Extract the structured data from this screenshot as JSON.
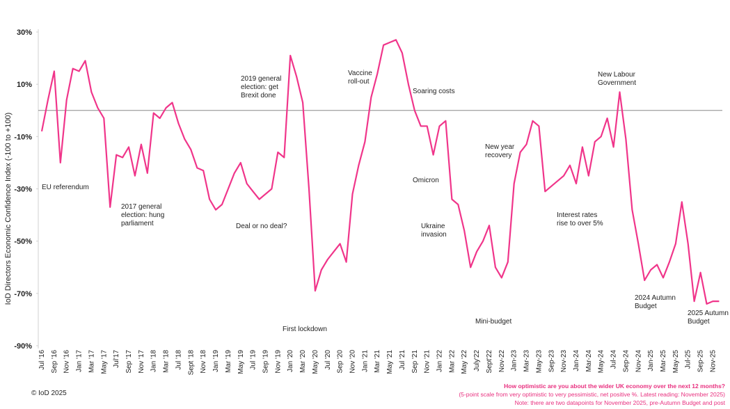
{
  "chart_data": {
    "type": "line",
    "y_label": "IoD Directors Economic Confidence Index (-100 to +100)",
    "copyright": "© IoD 2025",
    "question": "How optimistic are you about the wider UK economy over the next 12 months?",
    "scale_note": "(5-point scale from very optimistic to very pessimistic, net positive %. Latest reading: November 2025)",
    "note": "Note: there are two datapoints for November 2025, pre-Autumn Budget and post",
    "ylim": [
      -90,
      30
    ],
    "yticks": [
      {
        "value": 30,
        "label": "30%"
      },
      {
        "value": 10,
        "label": "10%"
      },
      {
        "value": -10,
        "label": "-10%"
      },
      {
        "value": -30,
        "label": "-30%"
      },
      {
        "value": -50,
        "label": "-50%"
      },
      {
        "value": -70,
        "label": "-70%"
      },
      {
        "value": -90,
        "label": "-90%"
      }
    ],
    "categories": [
      "Jul '16",
      null,
      "Sep '16",
      null,
      "Nov '16",
      null,
      "Jan '17",
      null,
      "Mar '17",
      null,
      "May '17",
      null,
      "Jul'17",
      null,
      "Sep '17",
      null,
      "Nov '17",
      null,
      "Jan '18",
      null,
      "Mar '18",
      null,
      "Jul '18",
      null,
      "Sept '18",
      null,
      "Nov '18",
      null,
      "Jan '19",
      null,
      "Mar '19",
      null,
      "May '19",
      null,
      "Jul '19",
      null,
      "Sep '19",
      null,
      "Nov '19",
      null,
      "Jan '20",
      null,
      "Mar '20",
      null,
      "May '20",
      null,
      "Jul '20",
      null,
      "Sep '20",
      null,
      "Nov '20",
      null,
      "Jan '21",
      null,
      "Mar '21",
      null,
      "May '21",
      null,
      "Jul '21",
      null,
      "Sep '21",
      null,
      "Nov '21",
      null,
      "Jan '22",
      null,
      "Mar '22",
      null,
      "May '22",
      null,
      "July'22",
      null,
      "Sept'22",
      null,
      "Nov-22",
      null,
      "Jan-23",
      null,
      "Mar-23",
      null,
      "May-23",
      null,
      "Sep-23",
      null,
      "Nov-23",
      null,
      "Jan-24",
      null,
      "Mar-24",
      null,
      "May-24",
      null,
      "Jul-24",
      null,
      "Sep-24",
      null,
      "Nov-24",
      null,
      "Jan-25",
      null,
      "Mar-25",
      null,
      "May-25",
      null,
      "Jul-25",
      null,
      "Sep-25",
      null,
      "Nov-25",
      null
    ],
    "series": [
      {
        "name": "IoD Directors Economic Confidence Index",
        "color": "#f0358a",
        "values": [
          -8,
          4,
          15,
          -20,
          4,
          16,
          15,
          19,
          7,
          1,
          -3,
          -37,
          -17,
          -18,
          -14,
          -25,
          -13,
          -24,
          -1,
          -3,
          1,
          3,
          -5,
          -11,
          -15,
          -22,
          -23,
          -34,
          -38,
          -36,
          -30,
          -24,
          -20,
          -28,
          -31,
          -34,
          -32,
          -30,
          -16,
          -18,
          21,
          13,
          3,
          -30,
          -69,
          -61,
          -57,
          -54,
          -51,
          -58,
          -32,
          -21,
          -12,
          5,
          14,
          25,
          26,
          27,
          22,
          10,
          0,
          -6,
          -6,
          -17,
          -6,
          -4,
          -34,
          -36,
          -46,
          -60,
          -54,
          -50,
          -44,
          -60,
          -64,
          -58,
          -28,
          -16,
          -13,
          -4,
          -6,
          -31,
          -29,
          -27,
          -25,
          -21,
          -28,
          -14,
          -25,
          -12,
          -10,
          -3,
          -14,
          7,
          -11,
          -38,
          -51,
          -65,
          -61,
          -59,
          -64,
          -58,
          -51,
          -35,
          -51,
          -73,
          -62,
          -74,
          -73,
          -73
        ]
      }
    ],
    "annotations": [
      {
        "lines": [
          "EU referendum"
        ]
      },
      {
        "lines": [
          "2017 general",
          "election: hung",
          "parliament"
        ]
      },
      {
        "lines": [
          "Deal or no deal?"
        ]
      },
      {
        "lines": [
          "2019 general",
          "election: get",
          "Brexit done"
        ]
      },
      {
        "lines": [
          "First lockdown"
        ]
      },
      {
        "lines": [
          "Vaccine",
          "roll-out"
        ]
      },
      {
        "lines": [
          "Soaring costs"
        ]
      },
      {
        "lines": [
          "Omicron"
        ]
      },
      {
        "lines": [
          "Ukraine",
          "invasion"
        ]
      },
      {
        "lines": [
          "Mini-budget"
        ]
      },
      {
        "lines": [
          "New year",
          "recovery"
        ]
      },
      {
        "lines": [
          "Interest rates",
          "rise to over 5%"
        ]
      },
      {
        "lines": [
          "New Labour",
          "Government"
        ]
      },
      {
        "lines": [
          "2024 Autumn",
          "Budget"
        ]
      },
      {
        "lines": [
          "2025 Autumn",
          "Budget"
        ]
      }
    ]
  }
}
